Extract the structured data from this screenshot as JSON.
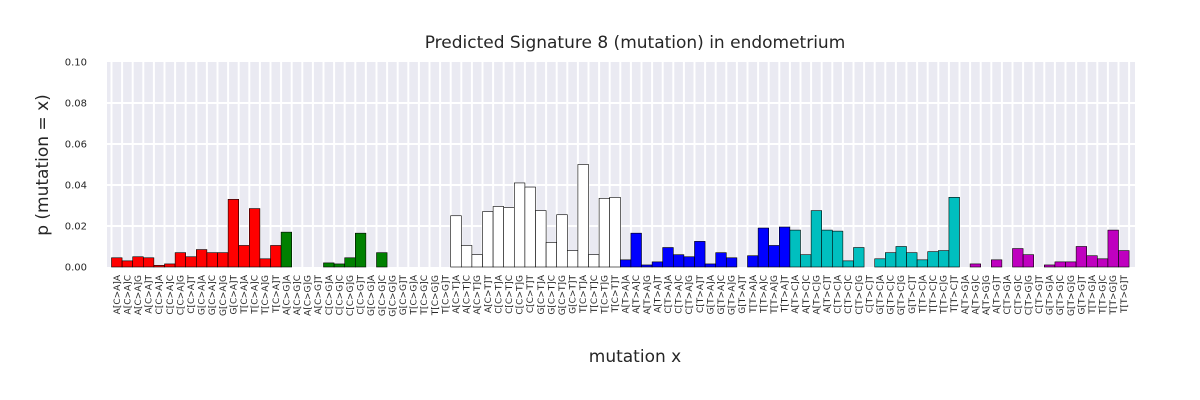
{
  "chart_data": {
    "type": "bar",
    "title": "Predicted Signature 8 (mutation) in endometrium",
    "xlabel": "mutation x",
    "ylabel": "p (mutation = x)",
    "ylim": [
      0,
      0.1
    ],
    "yticks": [
      "0.00",
      "0.02",
      "0.04",
      "0.06",
      "0.08",
      "0.10"
    ],
    "grid": true,
    "legend": "none",
    "group_colors": [
      "#ff0000",
      "#008000",
      "#ffffff",
      "#0000ff",
      "#00bfbf",
      "#bf00bf",
      "#bfbf00"
    ],
    "categories": [
      "A[C>A]A",
      "A[C>A]C",
      "A[C>A]G",
      "A[C>A]T",
      "C[C>A]A",
      "C[C>A]C",
      "C[C>A]G",
      "C[C>A]T",
      "G[C>A]A",
      "G[C>A]C",
      "G[C>A]G",
      "G[C>A]T",
      "T[C>A]A",
      "T[C>A]C",
      "T[C>A]G",
      "T[C>A]T",
      "A[C>G]A",
      "A[C>G]C",
      "A[C>G]G",
      "A[C>G]T",
      "C[C>G]A",
      "C[C>G]C",
      "C[C>G]G",
      "C[C>G]T",
      "G[C>G]A",
      "G[C>G]C",
      "G[C>G]G",
      "G[C>G]T",
      "T[C>G]A",
      "T[C>G]C",
      "T[C>G]G",
      "T[C>G]T",
      "A[C>T]A",
      "A[C>T]C",
      "A[C>T]G",
      "A[C>T]T",
      "C[C>T]A",
      "C[C>T]C",
      "C[C>T]G",
      "C[C>T]T",
      "G[C>T]A",
      "G[C>T]C",
      "G[C>T]G",
      "G[C>T]T",
      "T[C>T]A",
      "T[C>T]C",
      "T[C>T]G",
      "T[C>T]T",
      "A[T>A]A",
      "A[T>A]C",
      "A[T>A]G",
      "A[T>A]T",
      "C[T>A]A",
      "C[T>A]C",
      "C[T>A]G",
      "C[T>A]T",
      "G[T>A]A",
      "G[T>A]C",
      "G[T>A]G",
      "G[T>A]T",
      "T[T>A]A",
      "T[T>A]C",
      "T[T>A]G",
      "T[T>A]T",
      "A[T>C]A",
      "A[T>C]C",
      "A[T>C]G",
      "A[T>C]T",
      "C[T>C]A",
      "C[T>C]C",
      "C[T>C]G",
      "C[T>C]T",
      "G[T>C]A",
      "G[T>C]C",
      "G[T>C]G",
      "G[T>C]T",
      "T[T>C]A",
      "T[T>C]C",
      "T[T>C]G",
      "T[T>C]T",
      "A[T>G]A",
      "A[T>G]C",
      "A[T>G]G",
      "A[T>G]T",
      "C[T>G]A",
      "C[T>G]C",
      "C[T>G]G",
      "C[T>G]T",
      "G[T>G]A",
      "G[T>G]C",
      "G[T>G]G",
      "G[T>G]T",
      "T[T>G]A",
      "T[T>G]C",
      "T[T>G]G",
      "T[T>G]T"
    ],
    "values": [
      0.0045,
      0.003,
      0.005,
      0.0045,
      0.0008,
      0.0015,
      0.007,
      0.005,
      0.0085,
      0.007,
      0.007,
      0.033,
      0.0105,
      0.0285,
      0.004,
      0.0105,
      0.017,
      0.0,
      0.0,
      0.0,
      0.002,
      0.0015,
      0.0045,
      0.0165,
      0.0,
      0.007,
      0.0,
      0.0,
      0.0,
      0.0,
      0.0,
      0.0,
      0.025,
      0.0105,
      0.006,
      0.027,
      0.0295,
      0.029,
      0.041,
      0.039,
      0.0275,
      0.012,
      0.0255,
      0.008,
      0.05,
      0.006,
      0.0335,
      0.034,
      0.0035,
      0.0165,
      0.001,
      0.0025,
      0.0095,
      0.006,
      0.005,
      0.0125,
      0.0015,
      0.007,
      0.0045,
      0.0,
      0.0055,
      0.019,
      0.0105,
      0.0195,
      0.018,
      0.006,
      0.0275,
      0.018,
      0.0175,
      0.003,
      0.0095,
      0.0,
      0.004,
      0.007,
      0.01,
      0.007,
      0.0035,
      0.0075,
      0.008,
      0.034,
      0.0,
      0.0015,
      0.0,
      0.0035,
      0.0,
      0.009,
      0.006,
      0.0,
      0.001,
      0.0025,
      0.0025,
      0.01,
      0.0055,
      0.004,
      0.018,
      0.008
    ]
  }
}
